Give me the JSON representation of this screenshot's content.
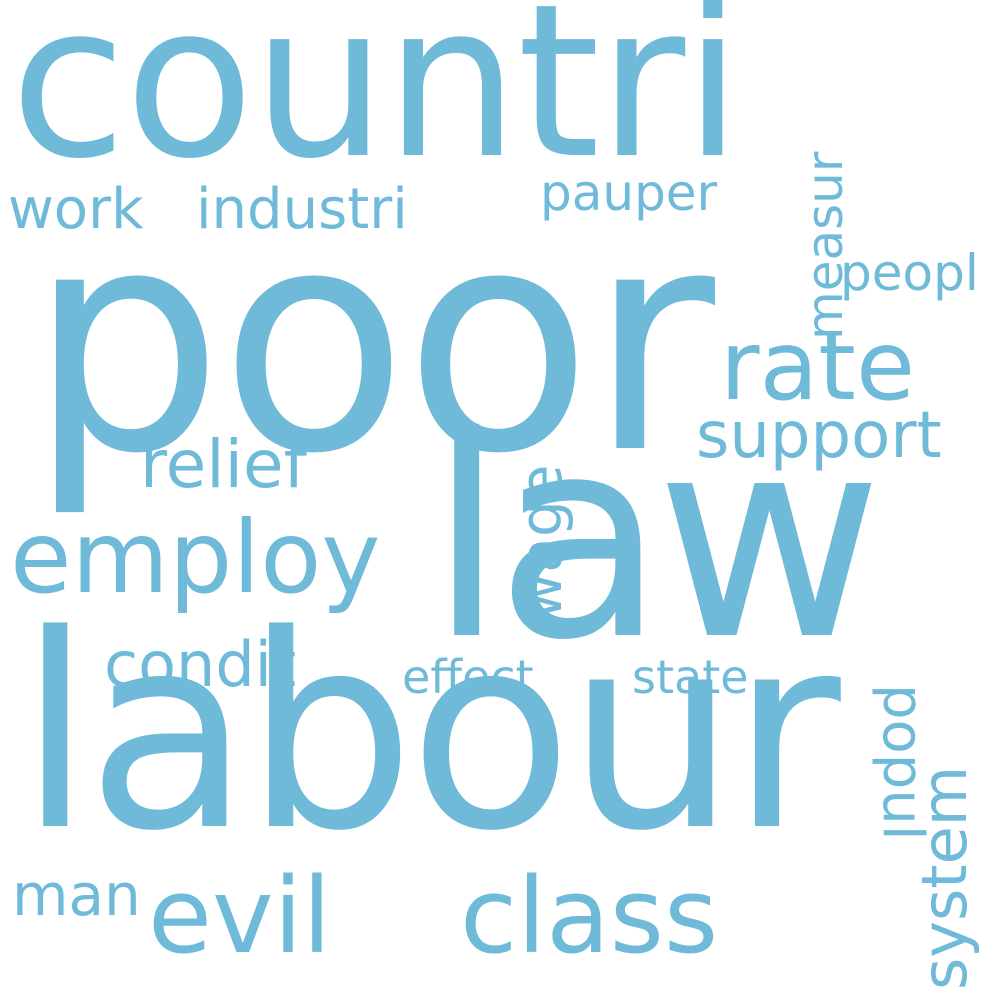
{
  "word_color": "#6fbad8",
  "background_color": "#ffffff",
  "words": {
    "poor": "poor",
    "countri": "countri",
    "labour": "labour",
    "law": "law",
    "evil": "evil",
    "class": "class",
    "employ": "employ",
    "rate": "rate",
    "support": "support",
    "relief": "relief",
    "condit": "condit",
    "industri": "industri",
    "work": "work",
    "pauper": "pauper",
    "peopl": "peopl",
    "effect": "effect",
    "state": "state",
    "man": "man",
    "measur": "measur",
    "wage": "wage",
    "popul": "popul",
    "system": "system"
  }
}
